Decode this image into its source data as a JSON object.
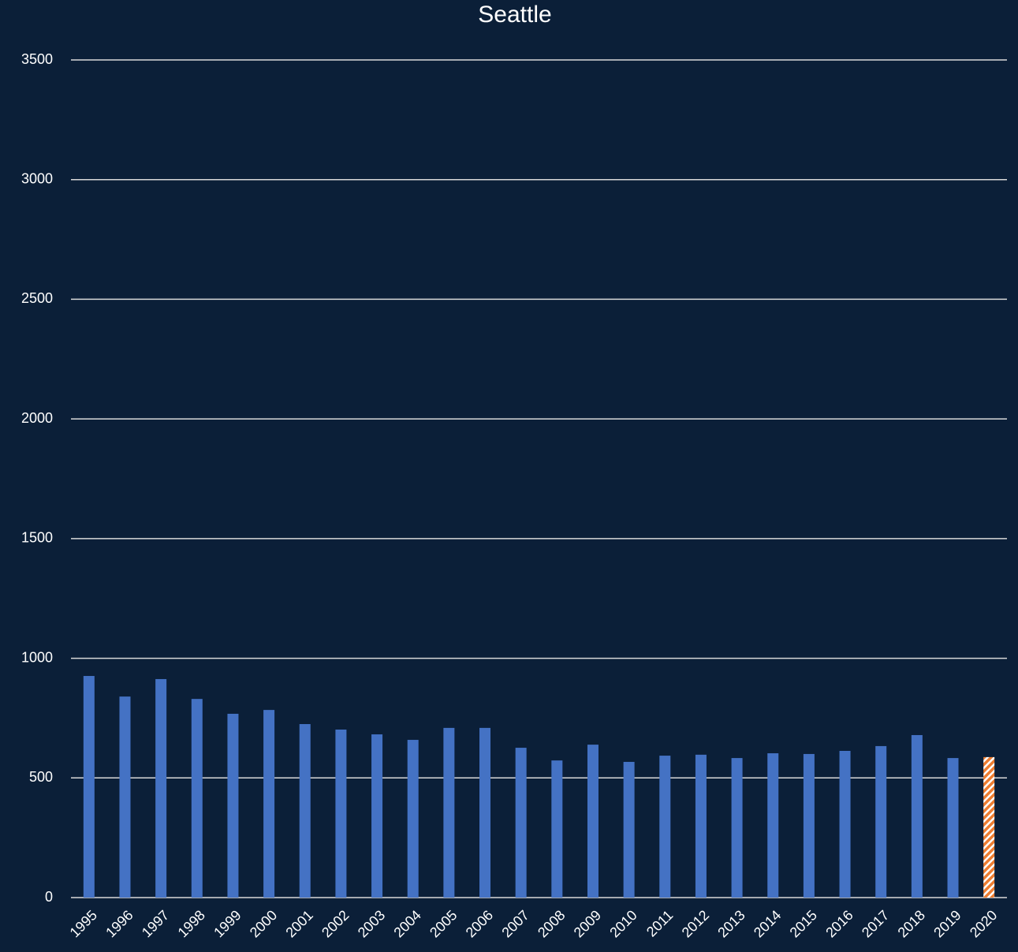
{
  "chart_data": {
    "type": "bar",
    "title": "Seattle",
    "categories": [
      "1995",
      "1996",
      "1997",
      "1998",
      "1999",
      "2000",
      "2001",
      "2002",
      "2003",
      "2004",
      "2005",
      "2006",
      "2007",
      "2008",
      "2009",
      "2010",
      "2011",
      "2012",
      "2013",
      "2014",
      "2015",
      "2016",
      "2017",
      "2018",
      "2019",
      "2020"
    ],
    "values": [
      926,
      840,
      913,
      830,
      768,
      784,
      725,
      702,
      682,
      659,
      709,
      709,
      626,
      573,
      639,
      567,
      593,
      597,
      583,
      603,
      600,
      613,
      633,
      679,
      583,
      587
    ],
    "colors": [
      "#4472c4",
      "#4472c4",
      "#4472c4",
      "#4472c4",
      "#4472c4",
      "#4472c4",
      "#4472c4",
      "#4472c4",
      "#4472c4",
      "#4472c4",
      "#4472c4",
      "#4472c4",
      "#4472c4",
      "#4472c4",
      "#4472c4",
      "#4472c4",
      "#4472c4",
      "#4472c4",
      "#4472c4",
      "#4472c4",
      "#4472c4",
      "#4472c4",
      "#4472c4",
      "#4472c4",
      "#4472c4",
      "#ed7d31"
    ],
    "fills": [
      "solid",
      "solid",
      "solid",
      "solid",
      "solid",
      "solid",
      "solid",
      "solid",
      "solid",
      "solid",
      "solid",
      "solid",
      "solid",
      "solid",
      "solid",
      "solid",
      "solid",
      "solid",
      "solid",
      "solid",
      "solid",
      "solid",
      "solid",
      "solid",
      "solid",
      "hatched"
    ],
    "ylim": [
      0,
      3500
    ],
    "yticks": [
      0,
      500,
      1000,
      1500,
      2000,
      2500,
      3000,
      3500
    ],
    "grid": true
  }
}
